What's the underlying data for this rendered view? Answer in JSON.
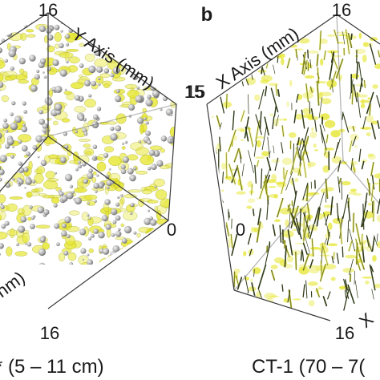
{
  "panel_a": {
    "axis_tick_top": "16",
    "axis_label": "Y Axis (mm)",
    "axis_tick_right": "15",
    "axis_tick_zero": "0",
    "axis_label_bottom_fragment": "nm)",
    "axis_tick_bottom": "16",
    "caption": "* (5 – 11 cm)"
  },
  "panel_b": {
    "panel_letter": "b",
    "axis_tick_top": "16",
    "axis_label": "X Axis (mm)",
    "axis_tick_left": "15",
    "axis_tick_zero": "0",
    "axis_tick_bottom": "16",
    "axis_label_bottom_fragment": "X",
    "caption": "CT-1 (70 – 7("
  },
  "colors": {
    "background": "#ffffff",
    "frame": "#3a3a3a",
    "fill_yellow": "#e6e630",
    "sphere_gray": "#b8b8b8",
    "needle_dark": "#2f3a18"
  }
}
